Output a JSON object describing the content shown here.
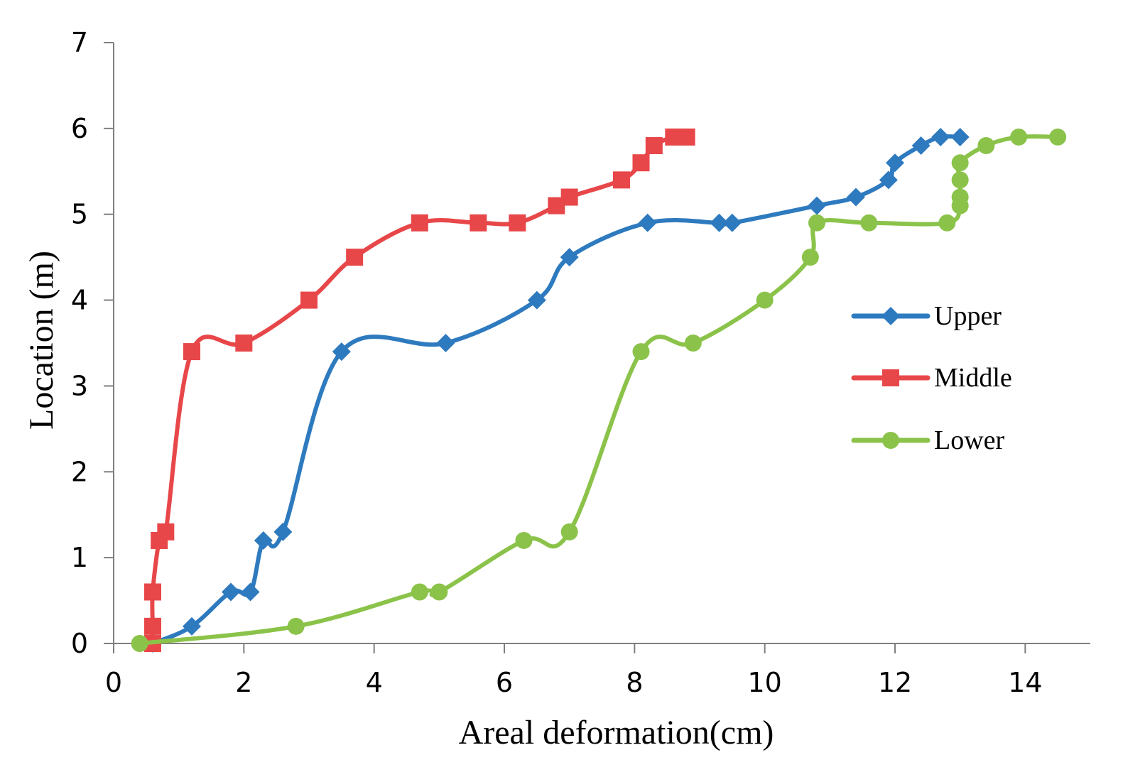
{
  "chart_data": {
    "type": "line",
    "title": "",
    "xlabel": "Areal deformation(cm)",
    "ylabel": "Location (m)",
    "xlim": [
      0,
      15
    ],
    "ylim": [
      0,
      7
    ],
    "x_ticks": [
      0,
      2,
      4,
      6,
      8,
      10,
      12,
      14
    ],
    "y_ticks": [
      0,
      1,
      2,
      3,
      4,
      5,
      6,
      7
    ],
    "grid": false,
    "legend_position": "right",
    "series": [
      {
        "name": "Upper",
        "color": "#2E7ABF",
        "marker": "diamond",
        "x": [
          0.6,
          1.2,
          1.8,
          2.1,
          2.3,
          2.6,
          3.5,
          5.1,
          6.5,
          7.0,
          8.2,
          9.3,
          9.5,
          10.8,
          11.4,
          11.9,
          12.0,
          12.4,
          12.7,
          13.0
        ],
        "y": [
          0.0,
          0.2,
          0.6,
          0.6,
          1.2,
          1.3,
          3.4,
          3.5,
          4.0,
          4.5,
          4.9,
          4.9,
          4.9,
          5.1,
          5.2,
          5.4,
          5.6,
          5.8,
          5.9,
          5.9
        ]
      },
      {
        "name": "Middle",
        "color": "#E8474A",
        "marker": "square",
        "x": [
          0.6,
          0.6,
          0.6,
          0.7,
          0.8,
          1.2,
          2.0,
          3.0,
          3.7,
          4.7,
          5.6,
          6.2,
          6.8,
          7.0,
          7.8,
          8.1,
          8.3,
          8.6,
          8.8
        ],
        "y": [
          0.0,
          0.2,
          0.6,
          1.2,
          1.3,
          3.4,
          3.5,
          4.0,
          4.5,
          4.9,
          4.9,
          4.9,
          5.1,
          5.2,
          5.4,
          5.6,
          5.8,
          5.9,
          5.9
        ]
      },
      {
        "name": "Lower",
        "color": "#8BC34A",
        "marker": "circle",
        "x": [
          0.4,
          2.8,
          4.7,
          5.0,
          6.3,
          7.0,
          8.1,
          8.9,
          10.0,
          10.7,
          10.8,
          11.6,
          12.8,
          13.0,
          13.0,
          13.0,
          13.0,
          13.4,
          13.9,
          14.5
        ],
        "y": [
          0.0,
          0.2,
          0.6,
          0.6,
          1.2,
          1.3,
          3.4,
          3.5,
          4.0,
          4.5,
          4.9,
          4.9,
          4.9,
          5.1,
          5.2,
          5.4,
          5.6,
          5.8,
          5.9,
          5.9
        ]
      }
    ]
  }
}
